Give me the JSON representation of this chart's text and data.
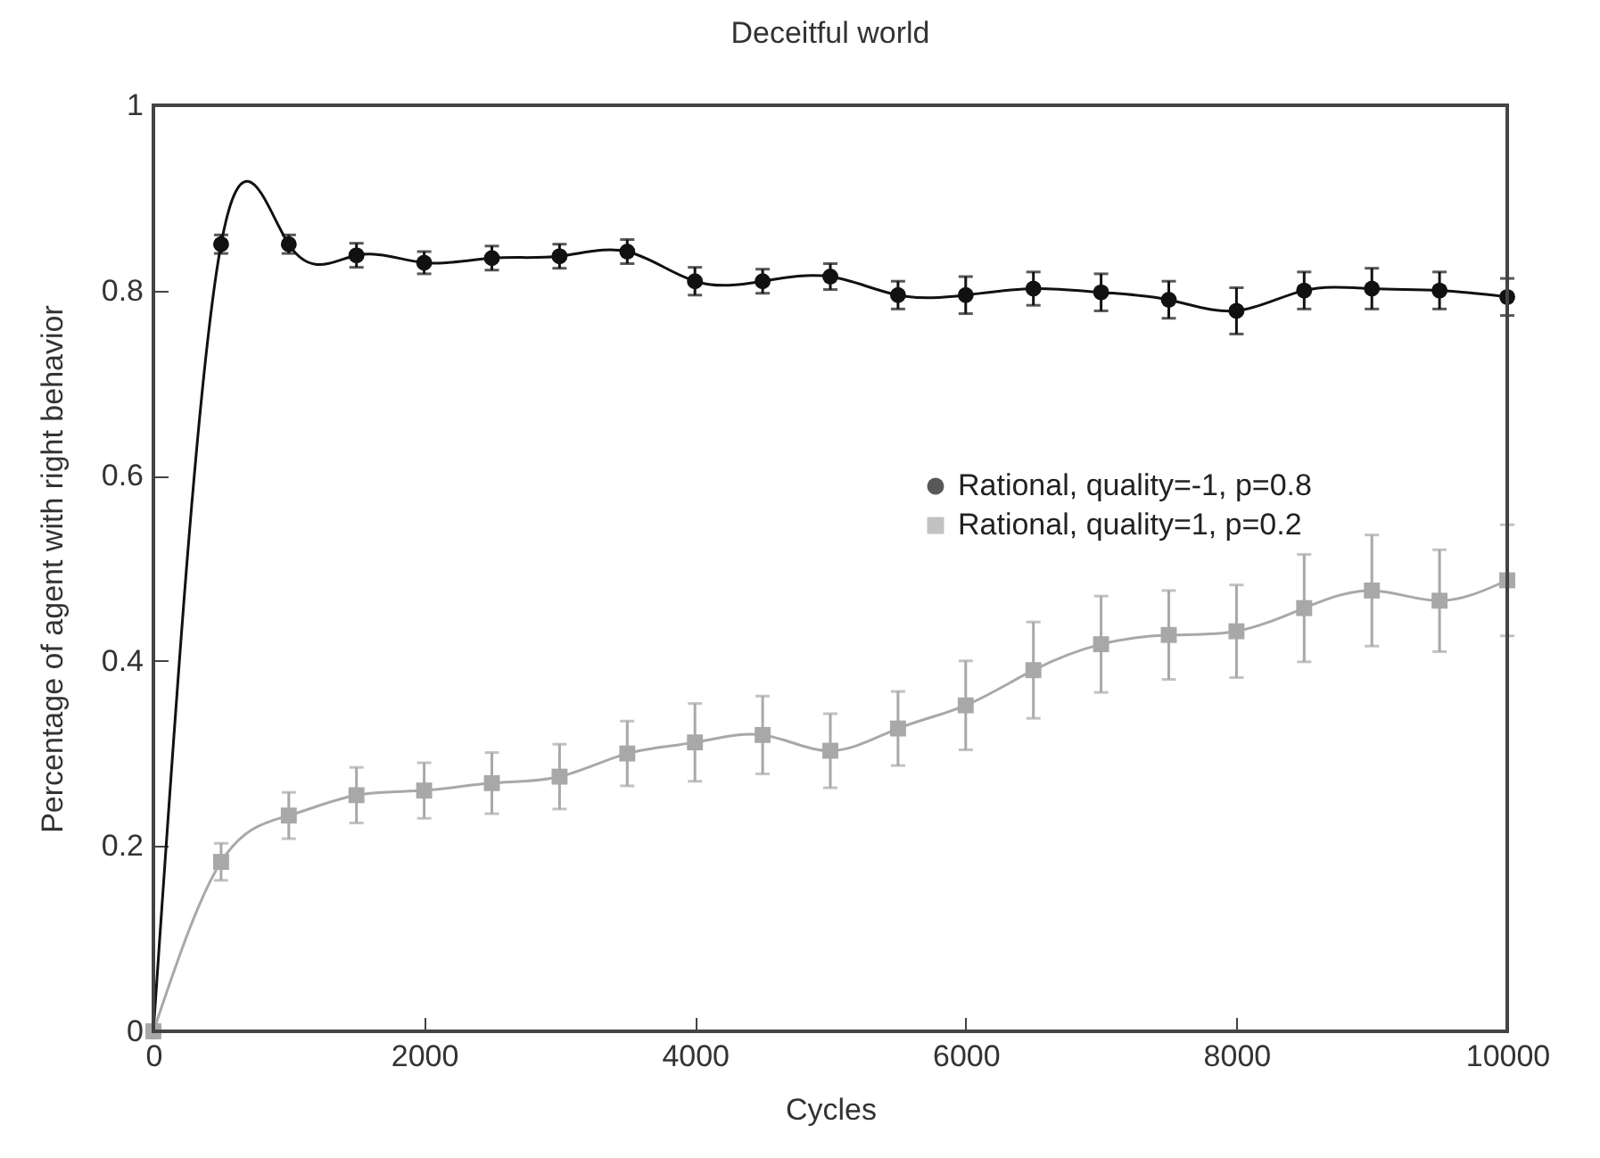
{
  "chart_data": {
    "type": "line",
    "title": "Deceitful world",
    "xlabel": "Cycles",
    "ylabel": "Percentage of agent with right behavior",
    "x": [
      0,
      500,
      1000,
      1500,
      2000,
      2500,
      3000,
      3500,
      4000,
      4500,
      5000,
      5500,
      6000,
      6500,
      7000,
      7500,
      8000,
      8500,
      9000,
      9500,
      10000
    ],
    "series": [
      {
        "name": "Rational, quality=-1, p=0.8",
        "color": "#111111",
        "marker": "circle",
        "values": [
          0,
          0.85,
          0.85,
          0.838,
          0.83,
          0.835,
          0.837,
          0.842,
          0.81,
          0.81,
          0.815,
          0.795,
          0.795,
          0.802,
          0.798,
          0.79,
          0.778,
          0.8,
          0.802,
          0.8,
          0.793
        ],
        "errors": [
          null,
          0.01,
          0.01,
          0.013,
          0.012,
          0.013,
          0.013,
          0.013,
          0.015,
          0.013,
          0.014,
          0.015,
          0.02,
          0.018,
          0.02,
          0.02,
          0.025,
          0.02,
          0.022,
          0.02,
          0.02
        ]
      },
      {
        "name": "Rational, quality=1, p=0.2",
        "color": "#a8a8a8",
        "marker": "square",
        "values": [
          0,
          0.183,
          0.233,
          0.255,
          0.26,
          0.268,
          0.275,
          0.3,
          0.312,
          0.32,
          0.303,
          0.327,
          0.352,
          0.39,
          0.418,
          0.428,
          0.432,
          0.457,
          0.476,
          0.465,
          0.487
        ],
        "errors": [
          null,
          0.02,
          0.025,
          0.03,
          0.03,
          0.033,
          0.035,
          0.035,
          0.042,
          0.042,
          0.04,
          0.04,
          0.048,
          0.052,
          0.052,
          0.048,
          0.05,
          0.058,
          0.06,
          0.055,
          0.06
        ]
      }
    ],
    "xlim": [
      0,
      10000
    ],
    "xticks": [
      0,
      2000,
      4000,
      6000,
      8000,
      10000
    ],
    "ylim": [
      0,
      1
    ],
    "yticks": [
      0,
      0.2,
      0.4,
      0.6,
      0.8,
      1
    ],
    "grid": false,
    "legend": "right",
    "line_style": "solid"
  }
}
